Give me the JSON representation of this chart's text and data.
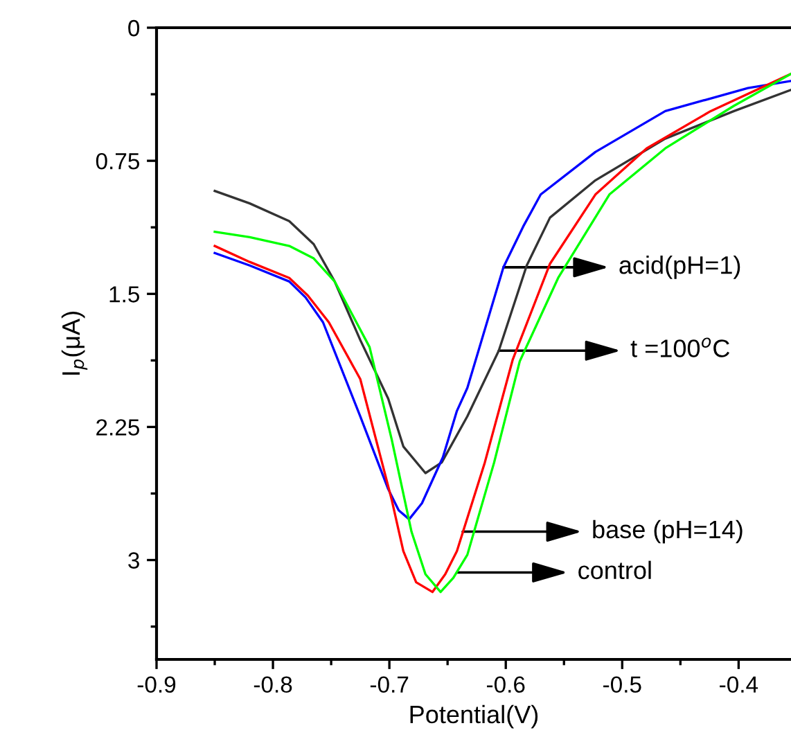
{
  "chart_data": {
    "type": "line",
    "xlabel": "Potential(V)",
    "ylabel": "I$_{p}$(μA)",
    "xlim": [
      -0.9,
      -0.355
    ],
    "ylim": [
      3.56,
      0
    ],
    "xticks": [
      -0.9,
      {
        "value": -0.85,
        "label": null
      },
      -0.8,
      {
        "value": -0.75,
        "label": null
      },
      -0.7,
      {
        "value": -0.65,
        "label": null
      },
      -0.6,
      {
        "value": -0.55,
        "label": null
      },
      -0.5,
      {
        "value": -0.45,
        "label": null
      },
      -0.4
    ],
    "yticks": [
      0,
      {
        "value": 0.375,
        "label": null
      },
      0.75,
      {
        "value": 1.125,
        "label": null
      },
      1.5,
      {
        "value": 1.875,
        "label": null
      },
      2.25,
      {
        "value": 2.625,
        "label": null
      },
      3,
      {
        "value": 3.375,
        "label": null
      }
    ],
    "grid": false,
    "legend": false,
    "marker": "none",
    "line_style": "solid",
    "series": [
      {
        "color": "#333333",
        "x": [
          -0.85,
          -0.82,
          -0.786,
          -0.765,
          -0.747,
          -0.725,
          -0.701,
          -0.688,
          -0.669,
          -0.655,
          -0.633,
          -0.606,
          -0.582,
          -0.562,
          -0.523,
          -0.463,
          -0.404,
          -0.355
        ],
        "values": [
          0.92,
          0.99,
          1.09,
          1.22,
          1.43,
          1.76,
          2.09,
          2.36,
          2.51,
          2.45,
          2.19,
          1.82,
          1.34,
          1.07,
          0.86,
          0.625,
          0.47,
          0.35
        ]
      },
      {
        "color": "#0000ff",
        "x": [
          -0.85,
          -0.82,
          -0.786,
          -0.772,
          -0.757,
          -0.725,
          -0.701,
          -0.692,
          -0.683,
          -0.672,
          -0.654,
          -0.642,
          -0.633,
          -0.602,
          -0.585,
          -0.57,
          -0.523,
          -0.463,
          -0.392,
          -0.355
        ],
        "values": [
          1.27,
          1.34,
          1.43,
          1.52,
          1.66,
          2.19,
          2.6,
          2.72,
          2.77,
          2.68,
          2.42,
          2.16,
          2.03,
          1.35,
          1.12,
          0.94,
          0.7,
          0.47,
          0.34,
          0.3
        ]
      },
      {
        "color": "#ff0000",
        "x": [
          -0.85,
          -0.82,
          -0.786,
          -0.77,
          -0.752,
          -0.725,
          -0.698,
          -0.688,
          -0.677,
          -0.663,
          -0.652,
          -0.642,
          -0.618,
          -0.594,
          -0.562,
          -0.523,
          -0.479,
          -0.424,
          -0.355
        ],
        "values": [
          1.23,
          1.32,
          1.41,
          1.51,
          1.66,
          1.98,
          2.66,
          2.95,
          3.125,
          3.18,
          3.08,
          2.95,
          2.45,
          1.87,
          1.33,
          0.94,
          0.68,
          0.47,
          0.26
        ]
      },
      {
        "color": "#00ff00",
        "x": [
          -0.85,
          -0.82,
          -0.786,
          -0.765,
          -0.747,
          -0.717,
          -0.698,
          -0.681,
          -0.669,
          -0.656,
          -0.645,
          -0.633,
          -0.61,
          -0.588,
          -0.555,
          -0.511,
          -0.463,
          -0.404,
          -0.355
        ],
        "values": [
          1.15,
          1.18,
          1.23,
          1.3,
          1.43,
          1.8,
          2.32,
          2.84,
          3.08,
          3.18,
          3.1,
          2.97,
          2.45,
          1.88,
          1.41,
          0.94,
          0.68,
          0.44,
          0.26
        ]
      }
    ],
    "annotations": [
      {
        "text": "acid(pH=1)",
        "x": -0.602,
        "y": 1.35
      },
      {
        "text": "t =100$^{o}$C",
        "x": -0.606,
        "y": 1.82
      },
      {
        "text": "base (pH=14)",
        "x": -0.637,
        "y": 2.84
      },
      {
        "text": "control",
        "x": -0.642,
        "y": 3.07
      }
    ]
  }
}
